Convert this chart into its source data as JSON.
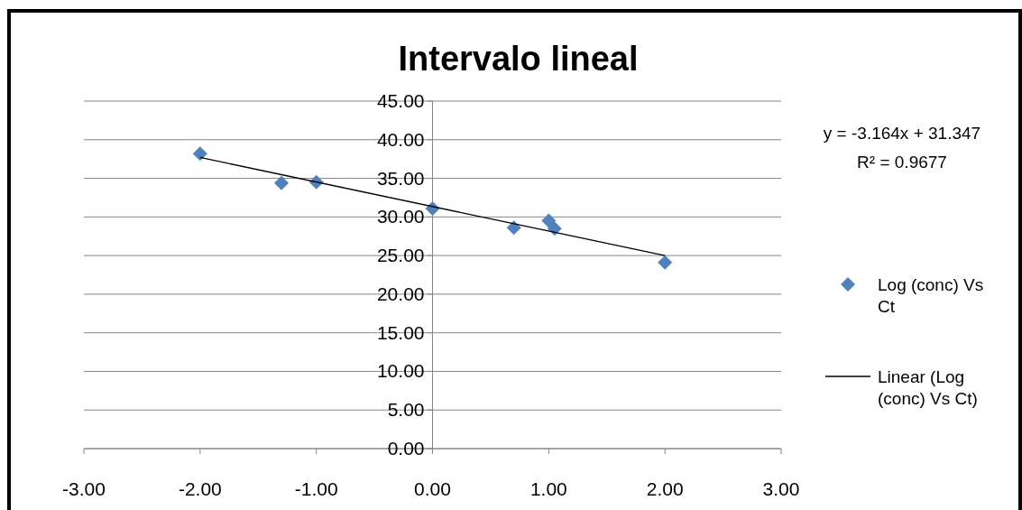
{
  "chart_data": {
    "type": "scatter",
    "title": "Intervalo lineal",
    "series": [
      {
        "name": "Log (conc) Vs Ct",
        "color": "#4f81bd",
        "marker": "diamond",
        "x": [
          -2,
          -1.3,
          -1,
          0,
          0.7,
          1,
          1.05,
          2
        ],
        "values": [
          38.2,
          34.4,
          34.5,
          31.1,
          28.6,
          29.5,
          28.5,
          24.1
        ]
      },
      {
        "name": "Linear (Log (conc) Vs Ct)",
        "type": "line",
        "color": "#000000",
        "marker": "none",
        "x": [
          -2,
          2
        ],
        "values": [
          37.7,
          25.0
        ]
      }
    ],
    "xlim": [
      -3,
      3
    ],
    "xticks": [
      {
        "value": -3,
        "label": "-3.00"
      },
      {
        "value": -2,
        "label": "-2.00"
      },
      {
        "value": -1,
        "label": "-1.00"
      },
      {
        "value": 0,
        "label": "0.00"
      },
      {
        "value": 1,
        "label": "1.00"
      },
      {
        "value": 2,
        "label": "2.00"
      },
      {
        "value": 3,
        "label": "3.00"
      }
    ],
    "ylim": [
      0,
      45
    ],
    "yticks": [
      {
        "value": 0,
        "label": "0.00"
      },
      {
        "value": 5,
        "label": "5.00"
      },
      {
        "value": 10,
        "label": "10.00"
      },
      {
        "value": 15,
        "label": "15.00"
      },
      {
        "value": 20,
        "label": "20.00"
      },
      {
        "value": 25,
        "label": "25.00"
      },
      {
        "value": 30,
        "label": "30.00"
      },
      {
        "value": 35,
        "label": "35.00"
      },
      {
        "value": 40,
        "label": "40.00"
      },
      {
        "value": 45,
        "label": "45.00"
      }
    ],
    "grid": "y",
    "legend": "right",
    "annotations": [
      "y = -3.164x + 31.347",
      "R² = 0.9677"
    ]
  }
}
